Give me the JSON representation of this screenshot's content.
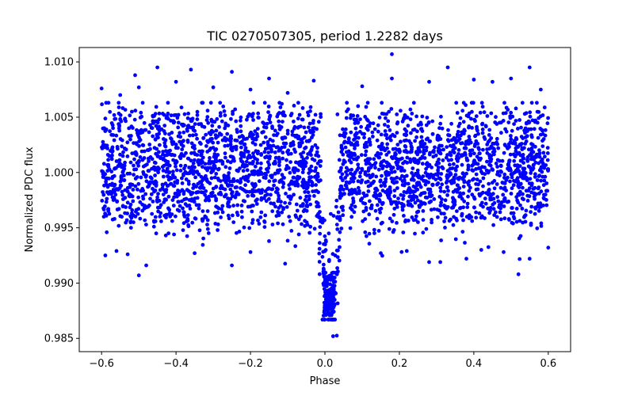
{
  "chart_data": {
    "type": "scatter",
    "title": "TIC 0270507305, period 1.2282 days",
    "xlabel": "Phase",
    "ylabel": "Normalized PDC flux",
    "xlim": [
      -0.66,
      0.66
    ],
    "ylim": [
      0.9838,
      1.0113
    ],
    "xticks": [
      -0.6,
      -0.4,
      -0.2,
      0.0,
      0.2,
      0.4,
      0.6
    ],
    "xtick_labels": [
      "−0.6",
      "−0.4",
      "−0.2",
      "0.0",
      "0.2",
      "0.4",
      "0.6"
    ],
    "yticks": [
      0.985,
      0.99,
      0.995,
      1.0,
      1.005,
      1.01
    ],
    "ytick_labels": [
      "0.985",
      "0.990",
      "0.995",
      "1.000",
      "1.005",
      "1.010"
    ],
    "marker_color": "#0000ff",
    "series": [
      {
        "name": "flux",
        "band_x": [
          -0.6,
          0.6
        ],
        "band_y": [
          0.9955,
          1.0055
        ],
        "outlier_points": [
          [
            -0.6,
            1.0076
          ],
          [
            -0.59,
            0.9925
          ],
          [
            -0.56,
            0.9929
          ],
          [
            -0.55,
            1.007
          ],
          [
            -0.53,
            0.9926
          ],
          [
            -0.51,
            1.0088
          ],
          [
            -0.5,
            1.0077
          ],
          [
            -0.5,
            0.9907
          ],
          [
            -0.48,
            0.9916
          ],
          [
            -0.45,
            1.0095
          ],
          [
            -0.42,
            0.9945
          ],
          [
            -0.4,
            1.0082
          ],
          [
            -0.36,
            1.0093
          ],
          [
            -0.35,
            0.9927
          ],
          [
            -0.3,
            1.0077
          ],
          [
            -0.25,
            1.0091
          ],
          [
            -0.25,
            0.9916
          ],
          [
            -0.2,
            0.9928
          ],
          [
            -0.2,
            1.0075
          ],
          [
            -0.15,
            1.0085
          ],
          [
            -0.15,
            0.9938
          ],
          [
            -0.1,
            1.0072
          ],
          [
            -0.07,
            0.9944
          ],
          [
            -0.03,
            1.0083
          ],
          [
            0.1,
            1.0078
          ],
          [
            0.15,
            0.9927
          ],
          [
            0.18,
            1.0107
          ],
          [
            0.18,
            1.0085
          ],
          [
            0.22,
            0.9929
          ],
          [
            0.28,
            1.0082
          ],
          [
            0.28,
            0.9919
          ],
          [
            0.31,
            0.9919
          ],
          [
            0.33,
            1.0095
          ],
          [
            0.38,
            0.9922
          ],
          [
            0.4,
            1.0084
          ],
          [
            0.42,
            0.993
          ],
          [
            0.45,
            1.0082
          ],
          [
            0.48,
            0.9928
          ],
          [
            0.5,
            1.0085
          ],
          [
            0.52,
            0.9908
          ],
          [
            0.55,
            1.0095
          ],
          [
            0.55,
            0.9922
          ],
          [
            0.58,
            1.0075
          ],
          [
            0.6,
            0.9932
          ]
        ],
        "transit": {
          "center_phase": 0.012,
          "depth_flux": 0.989,
          "min_flux": 0.9852,
          "half_width_phase": 0.035
        }
      }
    ]
  }
}
